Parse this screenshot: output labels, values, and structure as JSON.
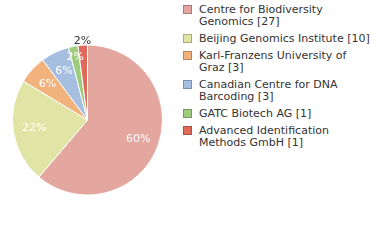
{
  "chart_data": {
    "type": "pie",
    "categories": [
      "Centre for Biodiversity Genomics [27]",
      "Beijing Genomics Institute [10]",
      "Karl-Franzens University of Graz [3]",
      "Canadian Centre for DNA Barcoding [3]",
      "GATC Biotech AG [1]",
      "Advanced Identification Methods GmbH [1]"
    ],
    "values": [
      60,
      22,
      6,
      6,
      2,
      2
    ],
    "value_labels": [
      "60%",
      "22%",
      "6%",
      "6%",
      "2%",
      "2%"
    ],
    "colors": [
      "#e4a7a0",
      "#e0e4a4",
      "#f2b27c",
      "#a6bee0",
      "#9ccc7c",
      "#e06a5a"
    ],
    "data_labels": true,
    "legend": "right"
  }
}
